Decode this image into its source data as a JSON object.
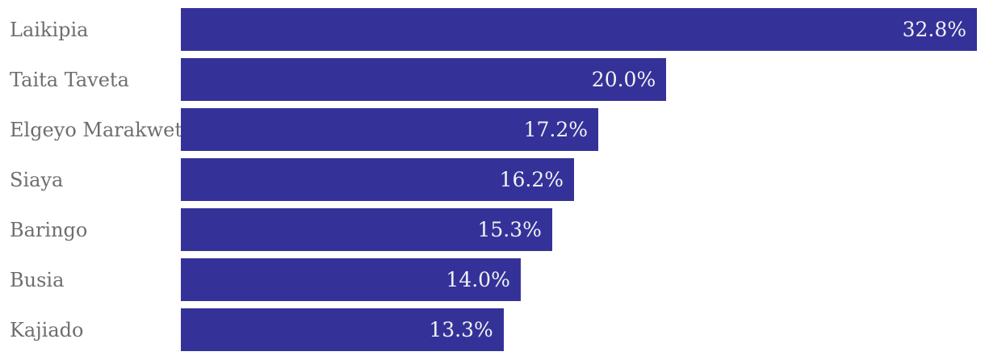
{
  "colors": {
    "background": "#ffffff",
    "bar": "#343299",
    "label_text": "#6e6e6e",
    "value_text": "#f2f2f2"
  },
  "chart_data": {
    "type": "bar",
    "orientation": "horizontal",
    "title": "",
    "xlabel": "",
    "ylabel": "",
    "grid": false,
    "legend": false,
    "xlim": [
      0,
      32.8
    ],
    "value_label_position": "inside-end",
    "categories": [
      "Laikipia",
      "Taita Taveta",
      "Elgeyo Marakwet",
      "Siaya",
      "Baringo",
      "Busia",
      "Kajiado"
    ],
    "values": [
      32.8,
      20.0,
      17.2,
      16.2,
      15.3,
      14.0,
      13.3
    ],
    "value_labels": [
      "32.8%",
      "20.0%",
      "17.2%",
      "16.2%",
      "15.3%",
      "14.0%",
      "13.3%"
    ]
  }
}
